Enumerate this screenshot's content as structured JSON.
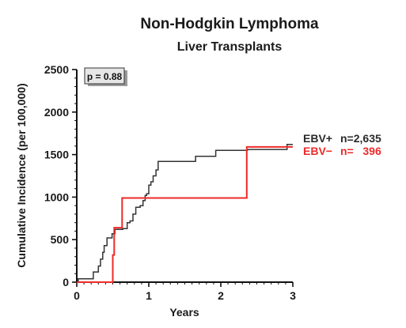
{
  "chart_data": {
    "type": "line",
    "step": true,
    "title": "Non-Hodgkin Lymphoma",
    "subtitle": "Liver Transplants",
    "xlabel": "Years",
    "ylabel": "Cumulative Incidence (per 100,000)",
    "xlim": [
      0,
      3
    ],
    "ylim": [
      0,
      2500
    ],
    "xticks": [
      "0",
      "1",
      "2",
      "3"
    ],
    "yticks": [
      "0",
      "500",
      "1000",
      "1500",
      "2000",
      "2500"
    ],
    "grid": false,
    "annotation": "p = 0.88",
    "legend_position": "right",
    "series": [
      {
        "name": "EBV+",
        "n_label": "n=2,635",
        "color": "#333333",
        "points": [
          [
            0,
            0
          ],
          [
            0.02,
            40
          ],
          [
            0.2,
            40
          ],
          [
            0.23,
            120
          ],
          [
            0.28,
            120
          ],
          [
            0.3,
            190
          ],
          [
            0.33,
            270
          ],
          [
            0.36,
            350
          ],
          [
            0.38,
            430
          ],
          [
            0.42,
            520
          ],
          [
            0.46,
            520
          ],
          [
            0.49,
            570
          ],
          [
            0.53,
            620
          ],
          [
            0.6,
            620
          ],
          [
            0.64,
            630
          ],
          [
            0.7,
            700
          ],
          [
            0.74,
            720
          ],
          [
            0.78,
            800
          ],
          [
            0.82,
            880
          ],
          [
            0.85,
            880
          ],
          [
            0.88,
            900
          ],
          [
            0.92,
            960
          ],
          [
            0.95,
            1020
          ],
          [
            0.97,
            1040
          ],
          [
            1.0,
            1140
          ],
          [
            1.03,
            1180
          ],
          [
            1.06,
            1250
          ],
          [
            1.1,
            1320
          ],
          [
            1.13,
            1420
          ],
          [
            1.6,
            1420
          ],
          [
            1.65,
            1480
          ],
          [
            1.9,
            1480
          ],
          [
            1.93,
            1550
          ],
          [
            2.35,
            1550
          ],
          [
            2.37,
            1560
          ],
          [
            2.9,
            1560
          ],
          [
            2.92,
            1620
          ],
          [
            3.0,
            1620
          ]
        ]
      },
      {
        "name": "EBV−",
        "n_label": "n=   396",
        "color": "#ee2a2a",
        "points": [
          [
            0,
            0
          ],
          [
            0.48,
            0
          ],
          [
            0.5,
            320
          ],
          [
            0.52,
            640
          ],
          [
            0.62,
            640
          ],
          [
            0.63,
            990
          ],
          [
            2.35,
            990
          ],
          [
            2.36,
            1590
          ],
          [
            3.0,
            1590
          ]
        ]
      }
    ]
  }
}
